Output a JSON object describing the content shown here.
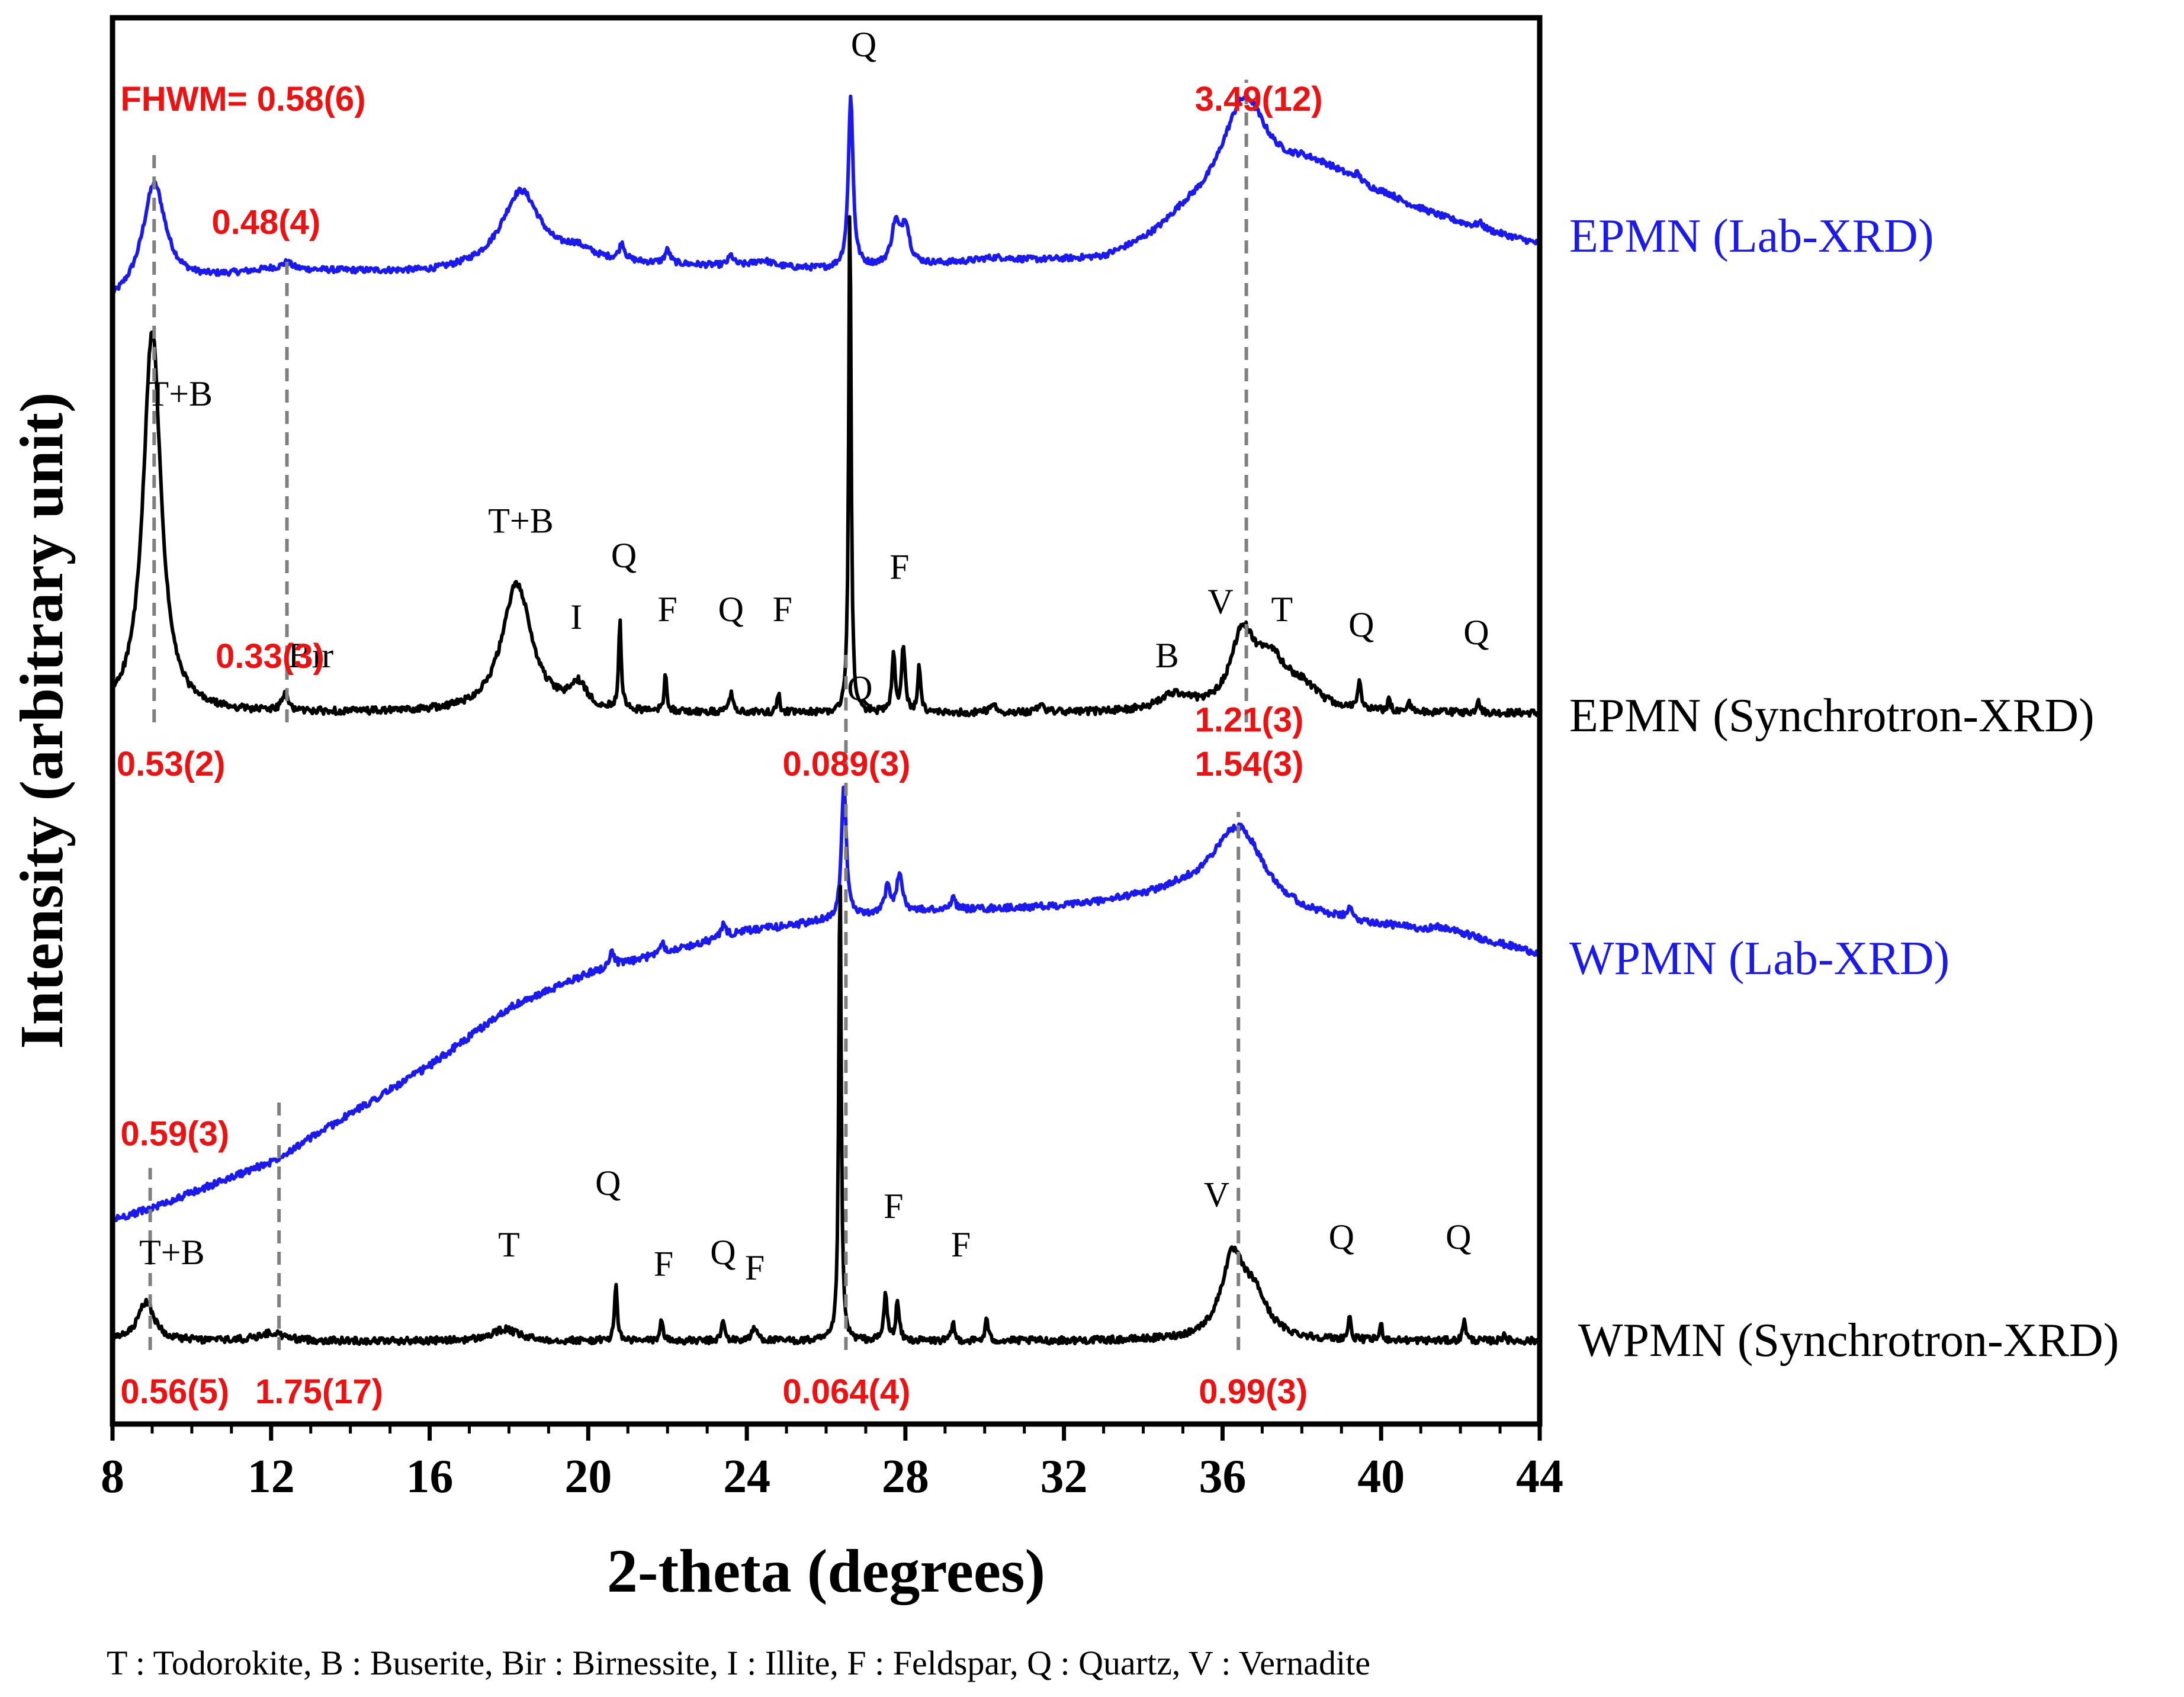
{
  "chart_data": {
    "type": "line",
    "title": "",
    "xlabel": "2-theta (degrees)",
    "ylabel": "Intensity (arbitrary unit)",
    "xlim": [
      8,
      44
    ],
    "xticks": [
      "8",
      "12",
      "16",
      "20",
      "24",
      "28",
      "32",
      "36",
      "40",
      "44"
    ],
    "yticks": [],
    "grid": false,
    "legend": "right-of-plot labels",
    "footnote": "T : Todorokite, B : Buserite, Bir : Birnessite, I : Illite, F : Feldspar, Q : Quartz, V : Vernadite",
    "series": [
      {
        "name": "EPMN (Lab-XRD)",
        "color": "#1a1aee",
        "baseline": 0.62,
        "slope": 0.0,
        "peaks": [
          [
            9.05,
            0.31,
            0.35
          ],
          [
            12.4,
            0.02,
            0.15
          ],
          [
            18.3,
            0.23,
            0.6
          ],
          [
            19.7,
            0.03,
            0.4
          ],
          [
            20.85,
            0.05,
            0.08
          ],
          [
            22.0,
            0.04,
            0.08
          ],
          [
            23.6,
            0.03,
            0.08
          ],
          [
            24.4,
            0.02,
            0.3
          ],
          [
            26.62,
            0.52,
            0.07
          ],
          [
            27.75,
            0.12,
            0.12
          ],
          [
            28.0,
            0.12,
            0.12
          ],
          [
            30.3,
            0.01,
            0.5
          ],
          [
            35.0,
            0.04,
            0.8
          ],
          [
            36.55,
            0.31,
            0.7
          ],
          [
            38.5,
            0.1,
            1.6
          ],
          [
            39.4,
            0.02,
            0.1
          ],
          [
            40.2,
            0.01,
            0.3
          ],
          [
            42.5,
            0.015,
            0.1
          ]
        ]
      },
      {
        "name": "EPMN (Synchrotron-XRD)",
        "color": "#000000",
        "baseline": 0.0,
        "slope": 0.0,
        "peaks": [
          [
            9.0,
            0.98,
            0.27
          ],
          [
            12.35,
            0.04,
            0.1
          ],
          [
            18.2,
            0.33,
            0.45
          ],
          [
            19.75,
            0.06,
            0.25
          ],
          [
            20.8,
            0.23,
            0.04
          ],
          [
            21.95,
            0.1,
            0.04
          ],
          [
            23.6,
            0.05,
            0.05
          ],
          [
            24.8,
            0.05,
            0.04
          ],
          [
            26.6,
            1.35,
            0.035
          ],
          [
            27.7,
            0.15,
            0.05
          ],
          [
            27.95,
            0.17,
            0.05
          ],
          [
            28.35,
            0.12,
            0.04
          ],
          [
            30.2,
            0.02,
            0.1
          ],
          [
            31.4,
            0.02,
            0.1
          ],
          [
            34.8,
            0.04,
            0.5
          ],
          [
            36.5,
            0.18,
            0.35
          ],
          [
            37.2,
            0.12,
            0.5
          ],
          [
            38.0,
            0.05,
            0.5
          ],
          [
            39.45,
            0.08,
            0.04
          ],
          [
            40.2,
            0.03,
            0.04
          ],
          [
            40.7,
            0.025,
            0.04
          ],
          [
            42.45,
            0.04,
            0.04
          ]
        ]
      },
      {
        "name": "WPMN (Lab-XRD)",
        "color": "#1a1aee",
        "baseline": 0.0,
        "slope": 1.0,
        "peaks": [
          [
            20.6,
            0.04,
            0.08
          ],
          [
            21.85,
            0.03,
            0.08
          ],
          [
            23.4,
            0.03,
            0.08
          ],
          [
            26.45,
            0.36,
            0.07
          ],
          [
            27.55,
            0.07,
            0.08
          ],
          [
            27.85,
            0.1,
            0.08
          ],
          [
            29.2,
            0.03,
            0.08
          ],
          [
            36.4,
            0.21,
            0.8
          ],
          [
            39.2,
            0.025,
            0.08
          ],
          [
            41.5,
            0.01,
            0.3
          ]
        ]
      },
      {
        "name": "WPMN (Synchrotron-XRD)",
        "color": "#000000",
        "baseline": 0.0,
        "slope": 0.0,
        "peaks": [
          [
            8.85,
            0.1,
            0.25
          ],
          [
            12.0,
            0.02,
            0.4
          ],
          [
            17.9,
            0.03,
            0.4
          ],
          [
            20.7,
            0.15,
            0.04
          ],
          [
            21.85,
            0.05,
            0.05
          ],
          [
            23.4,
            0.05,
            0.05
          ],
          [
            24.2,
            0.03,
            0.1
          ],
          [
            26.35,
            1.25,
            0.035
          ],
          [
            27.5,
            0.12,
            0.05
          ],
          [
            27.8,
            0.1,
            0.05
          ],
          [
            29.2,
            0.05,
            0.04
          ],
          [
            30.05,
            0.06,
            0.04
          ],
          [
            36.25,
            0.2,
            0.35
          ],
          [
            36.8,
            0.1,
            0.4
          ],
          [
            39.2,
            0.06,
            0.04
          ],
          [
            40.0,
            0.04,
            0.04
          ],
          [
            42.1,
            0.06,
            0.04
          ],
          [
            43.1,
            0.02,
            0.04
          ]
        ]
      }
    ],
    "peak_labels": [
      {
        "text": "T+B",
        "x": 9.7,
        "series": "EPMN (Synchrotron-XRD)",
        "offset": 0.8
      },
      {
        "text": "Bir",
        "x": 13.0,
        "series": "EPMN (Synchrotron-XRD)",
        "offset": 0.12
      },
      {
        "text": "T+B",
        "x": 18.3,
        "series": "EPMN (Synchrotron-XRD)",
        "offset": 0.47
      },
      {
        "text": "I",
        "x": 19.7,
        "series": "EPMN (Synchrotron-XRD)",
        "offset": 0.22
      },
      {
        "text": "Q",
        "x": 20.9,
        "series": "EPMN (Synchrotron-XRD)",
        "offset": 0.38
      },
      {
        "text": "F",
        "x": 22.0,
        "series": "EPMN (Synchrotron-XRD)",
        "offset": 0.24
      },
      {
        "text": "Q",
        "x": 23.6,
        "series": "EPMN (Synchrotron-XRD)",
        "offset": 0.24
      },
      {
        "text": "F",
        "x": 24.9,
        "series": "EPMN (Synchrotron-XRD)",
        "offset": 0.24
      },
      {
        "text": "Q",
        "x": 26.95,
        "series": "EPMN (Lab-XRD)",
        "offset": 0.6
      },
      {
        "text": "F",
        "x": 27.85,
        "series": "EPMN (Synchrotron-XRD)",
        "offset": 0.35
      },
      {
        "text": "B",
        "x": 34.6,
        "series": "EPMN (Synchrotron-XRD)",
        "offset": 0.12
      },
      {
        "text": "V",
        "x": 35.95,
        "series": "EPMN (Synchrotron-XRD)",
        "offset": 0.26
      },
      {
        "text": "T",
        "x": 37.5,
        "series": "EPMN (Synchrotron-XRD)",
        "offset": 0.24
      },
      {
        "text": "Q",
        "x": 39.5,
        "series": "EPMN (Synchrotron-XRD)",
        "offset": 0.2
      },
      {
        "text": "Q",
        "x": 42.4,
        "series": "EPMN (Synchrotron-XRD)",
        "offset": 0.18
      },
      {
        "text": "Q",
        "x": 26.85,
        "series": "WPMN (Lab-XRD)",
        "offset": 1.35
      },
      {
        "text": "T+B",
        "x": 9.5,
        "series": "WPMN (Synchrotron-XRD)",
        "offset": 0.2
      },
      {
        "text": "T",
        "x": 18.0,
        "series": "WPMN (Synchrotron-XRD)",
        "offset": 0.22
      },
      {
        "text": "Q",
        "x": 20.5,
        "series": "WPMN (Synchrotron-XRD)",
        "offset": 0.38
      },
      {
        "text": "F",
        "x": 21.9,
        "series": "WPMN (Synchrotron-XRD)",
        "offset": 0.17
      },
      {
        "text": "Q",
        "x": 23.4,
        "series": "WPMN (Synchrotron-XRD)",
        "offset": 0.2
      },
      {
        "text": "F",
        "x": 24.2,
        "series": "WPMN (Synchrotron-XRD)",
        "offset": 0.16
      },
      {
        "text": "F",
        "x": 27.7,
        "series": "WPMN (Synchrotron-XRD)",
        "offset": 0.32
      },
      {
        "text": "F",
        "x": 29.4,
        "series": "WPMN (Synchrotron-XRD)",
        "offset": 0.22
      },
      {
        "text": "V",
        "x": 35.85,
        "series": "WPMN (Synchrotron-XRD)",
        "offset": 0.35
      },
      {
        "text": "Q",
        "x": 39.0,
        "series": "WPMN (Synchrotron-XRD)",
        "offset": 0.24
      },
      {
        "text": "Q",
        "x": 41.95,
        "series": "WPMN (Synchrotron-XRD)",
        "offset": 0.24
      }
    ],
    "fwhm_annotations": [
      {
        "text": "FHWM= 0.58(6)",
        "x": 8.2,
        "series": "EPMN (Lab-XRD)",
        "offset": 0.52
      },
      {
        "text": "0.48(4)",
        "x": 10.5,
        "series": "EPMN (Lab-XRD)",
        "offset": 0.2
      },
      {
        "text": "3.49(12)",
        "x": 35.3,
        "series": "EPMN (Lab-XRD)",
        "offset": 0.52
      },
      {
        "text": "0.33(3)",
        "x": 10.6,
        "series": "EPMN (Synchrotron-XRD)",
        "offset": 0.18
      },
      {
        "text": "0.53(2)",
        "x": 8.1,
        "series": "EPMN (Synchrotron-XRD)",
        "offset": -0.1
      },
      {
        "text": "0.089(3)",
        "x": 24.9,
        "series": "EPMN (Synchrotron-XRD)",
        "offset": -0.1
      },
      {
        "text": "1.54(3)",
        "x": 35.3,
        "series": "EPMN (Synchrotron-XRD)",
        "offset": -0.1
      },
      {
        "text": "1.21(3)",
        "x": 35.3,
        "series": "WPMN (Lab-XRD)",
        "offset": 1.33
      },
      {
        "text": "0.59(3)",
        "x": 8.2,
        "series": "WPMN (Synchrotron-XRD)",
        "offset": 0.57
      },
      {
        "text": "0.56(5)",
        "x": 8.2,
        "series": "WPMN (Synchrotron-XRD)",
        "offset": -0.1
      },
      {
        "text": "1.75(17)",
        "x": 11.6,
        "series": "WPMN (Synchrotron-XRD)",
        "offset": -0.1
      },
      {
        "text": "0.064(4)",
        "x": 24.9,
        "series": "WPMN (Synchrotron-XRD)",
        "offset": -0.1
      },
      {
        "text": "0.99(3)",
        "x": 35.4,
        "series": "WPMN (Synchrotron-XRD)",
        "offset": -0.1
      }
    ],
    "fwhm_markers": [
      {
        "x": 9.05,
        "from": "EPMN (Synchrotron-XRD)",
        "to": "EPMN (Lab-XRD)",
        "extend": 0.55
      },
      {
        "x": 12.4,
        "from": "EPMN (Synchrotron-XRD)",
        "to": "EPMN (Lab-XRD)",
        "extend": 0.1
      },
      {
        "x": 36.6,
        "from": "EPMN (Synchrotron-XRD)",
        "to": "EPMN (Lab-XRD)",
        "extend": 0.3
      },
      {
        "x": 26.5,
        "from": "WPMN (Synchrotron-XRD)",
        "to": "EPMN (Synchrotron-XRD)",
        "extend": 0.02
      },
      {
        "x": 36.4,
        "from": "WPMN (Synchrotron-XRD)",
        "to": "WPMN (Lab-XRD)",
        "extend": 0.25
      },
      {
        "x": 8.95,
        "from": "WPMN (Synchrotron-XRD)",
        "to": "WPMN (Synchrotron-XRD)",
        "extend": 0.45
      },
      {
        "x": 12.2,
        "from": "WPMN (Synchrotron-XRD)",
        "to": "WPMN (Synchrotron-XRD)",
        "extend": 0.62
      }
    ]
  }
}
